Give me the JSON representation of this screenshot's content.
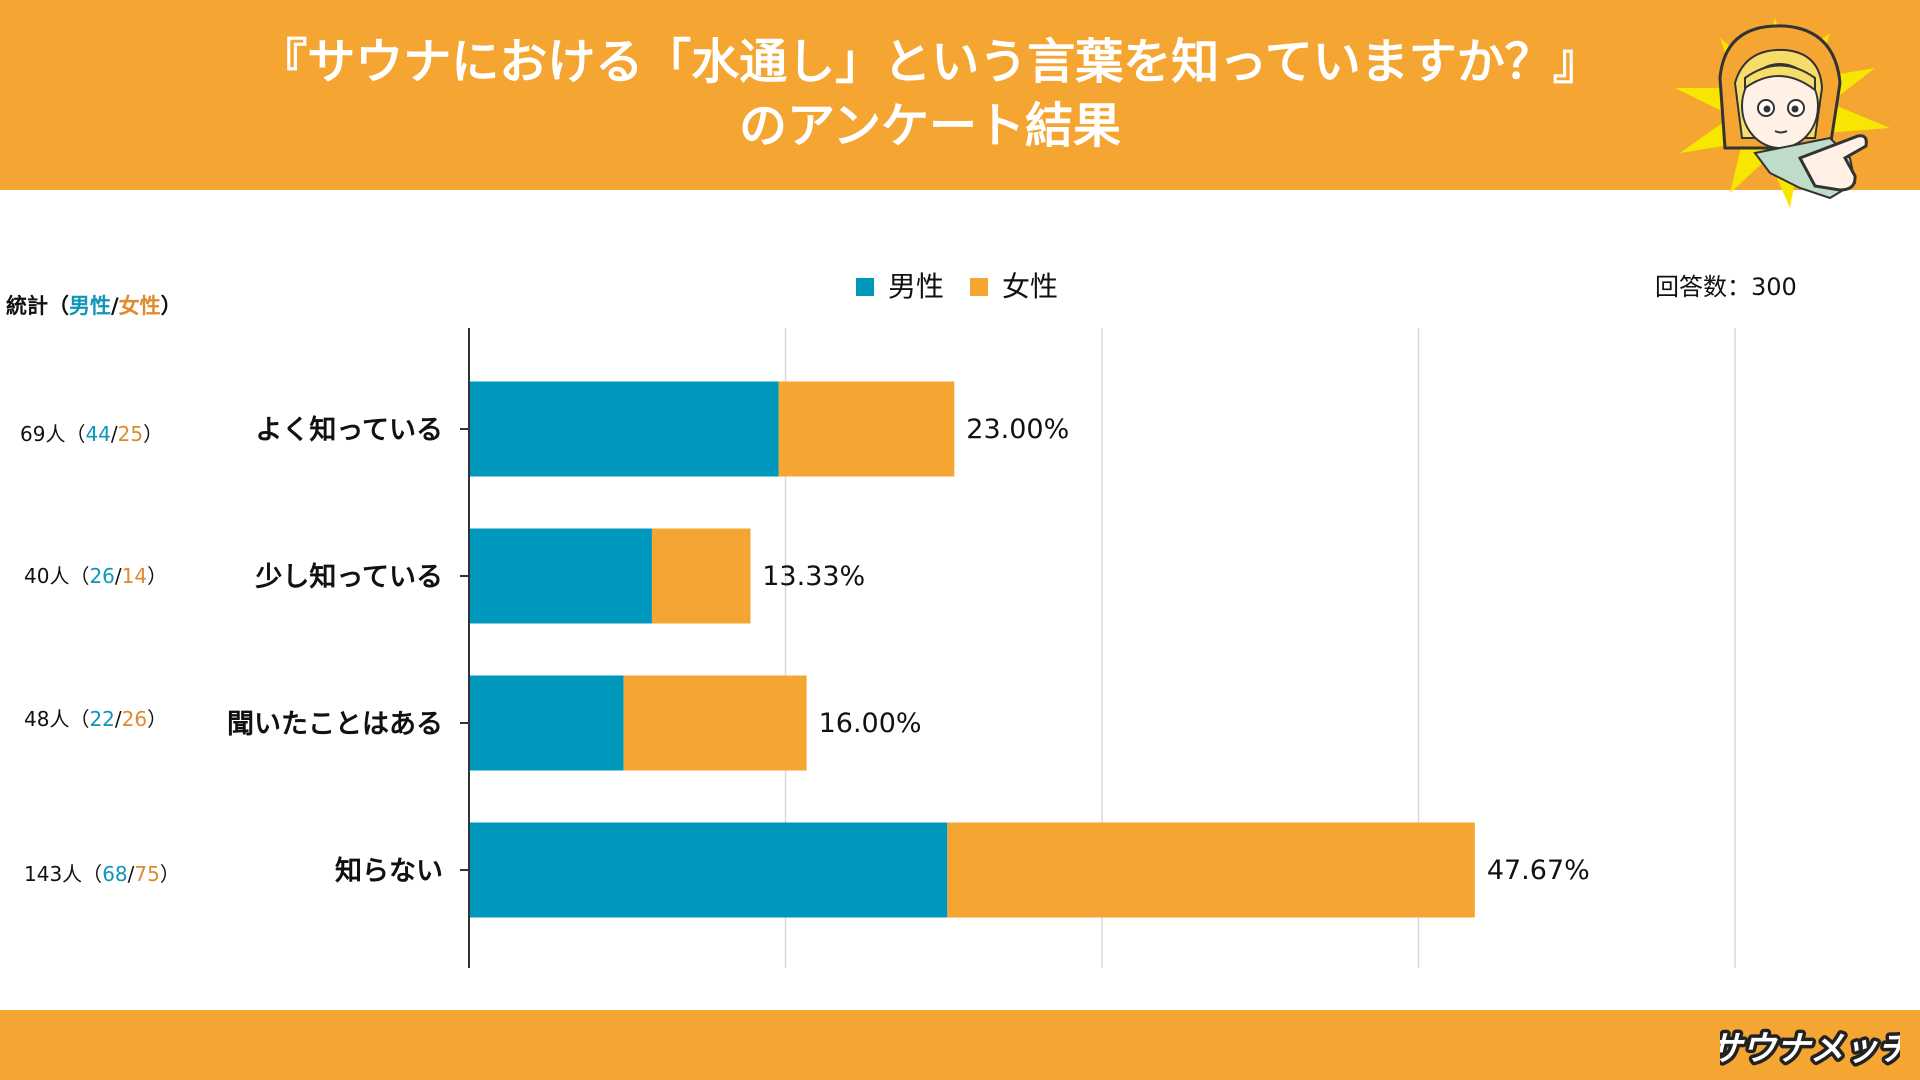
{
  "header": {
    "title_line1": "『サウナにおける「水通し」という言葉を知っていますか？』",
    "title_line2": "のアンケート結果"
  },
  "colors": {
    "accent": "#F4A532",
    "male": "#0097BD",
    "female": "#F4A532",
    "text": "#111111",
    "grid": "#D8D8D8"
  },
  "stats": {
    "header_prefix": "統計（",
    "header_male": "男性",
    "header_sep": "/",
    "header_female": "女性",
    "header_suffix": "）",
    "rows": [
      {
        "total": "69人（",
        "male": "44",
        "sep": "/",
        "female": "25",
        "close": "）"
      },
      {
        "total": "40人（",
        "male": "26",
        "sep": "/",
        "female": "14",
        "close": "）"
      },
      {
        "total": "48人（",
        "male": "22",
        "sep": "/",
        "female": "26",
        "close": "）"
      },
      {
        "total": "143人（",
        "male": "68",
        "sep": "/",
        "female": "75",
        "close": "）"
      }
    ]
  },
  "respondents": "回答数：300",
  "chart_data": {
    "type": "bar",
    "orientation": "horizontal",
    "stacked": true,
    "categories": [
      "よく知っている",
      "少し知っている",
      "聞いたことはある",
      "知らない"
    ],
    "series": [
      {
        "name": "男性",
        "values": [
          14.67,
          8.67,
          7.33,
          22.67
        ]
      },
      {
        "name": "女性",
        "values": [
          8.33,
          4.67,
          8.67,
          25.0
        ]
      }
    ],
    "totals": [
      23.0,
      13.33,
      16.0,
      47.67
    ],
    "data_labels": [
      "23.00%",
      "13.33%",
      "16.00%",
      "47.67%"
    ],
    "xlim": [
      0,
      60
    ],
    "grid": true,
    "legend": "top-center"
  },
  "logo_text": "サウナメッチ"
}
